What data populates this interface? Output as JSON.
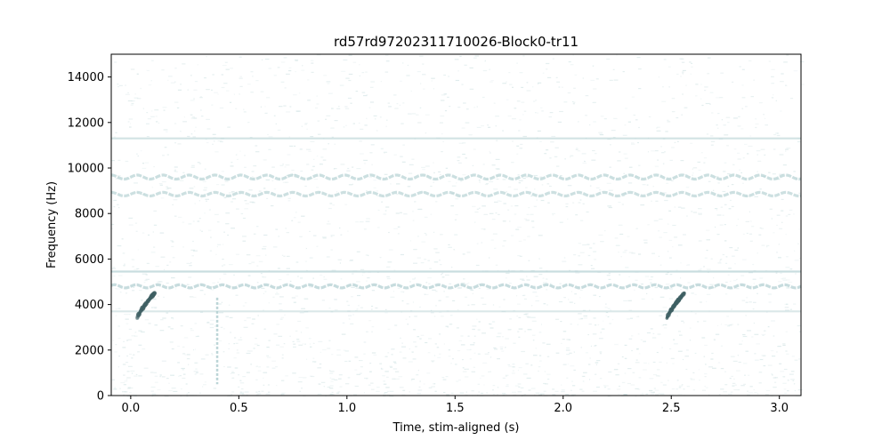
{
  "chart_data": {
    "type": "heatmap",
    "title": "rd57rd97202311710026-Block0-tr11",
    "xlabel": "Time, stim-aligned (s)",
    "ylabel": "Frequency (Hz)",
    "xlim": [
      -0.09,
      3.1
    ],
    "ylim": [
      0,
      15000
    ],
    "xticks": [
      0.0,
      0.5,
      1.0,
      1.5,
      2.0,
      2.5,
      3.0
    ],
    "xtick_labels": [
      "0.0",
      "0.5",
      "1.0",
      "1.5",
      "2.0",
      "2.5",
      "3.0"
    ],
    "yticks": [
      0,
      2000,
      4000,
      6000,
      8000,
      10000,
      12000,
      14000
    ],
    "ytick_labels": [
      "0",
      "2000",
      "4000",
      "6000",
      "8000",
      "10000",
      "12000",
      "14000"
    ],
    "grid": false,
    "colormap": "bone_r",
    "bands": [
      {
        "type": "wavy",
        "freq_hz": 9600,
        "amplitude_hz": 90,
        "period_s": 0.12,
        "intensity": 0.5
      },
      {
        "type": "wavy",
        "freq_hz": 8850,
        "amplitude_hz": 80,
        "period_s": 0.12,
        "intensity": 0.45
      },
      {
        "type": "flat",
        "freq_hz": 11300,
        "intensity": 0.35
      },
      {
        "type": "flat",
        "freq_hz": 5450,
        "intensity": 0.55
      },
      {
        "type": "wavy",
        "freq_hz": 4800,
        "amplitude_hz": 70,
        "period_s": 0.1,
        "intensity": 0.6
      },
      {
        "type": "flat",
        "freq_hz": 3700,
        "intensity": 0.15
      }
    ],
    "events": [
      {
        "type": "chirp",
        "t_start": 0.03,
        "t_end": 0.11,
        "f_start": 3400,
        "f_end": 4500,
        "intensity": 0.9
      },
      {
        "type": "chirp",
        "t_start": 2.48,
        "t_end": 2.56,
        "f_start": 3400,
        "f_end": 4500,
        "intensity": 0.9
      },
      {
        "type": "click",
        "t": 0.4,
        "f_low": 500,
        "f_high": 4300,
        "intensity": 0.6
      }
    ],
    "colors": {
      "low": "#ffffff",
      "mid": "#b5d1d3",
      "high": "#3e5f63"
    }
  }
}
